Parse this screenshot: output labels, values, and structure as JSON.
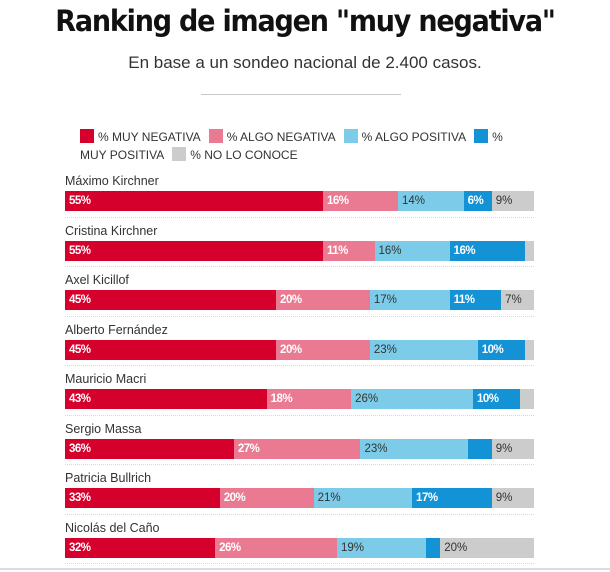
{
  "header": {
    "title": "Ranking de imagen \"muy negativa\"",
    "subtitle": "En base a un sondeo nacional de 2.400 casos."
  },
  "chart_data": {
    "type": "bar",
    "orientation": "horizontal-stacked-100",
    "title": "Ranking de imagen \"muy negativa\"",
    "subtitle": "En base a un sondeo nacional de 2.400 casos.",
    "legend_position": "top",
    "series": [
      {
        "key": "muy_negativa",
        "name": "% MUY NEGATIVA",
        "color": "#d6002c",
        "label_style": "dark",
        "values": [
          55,
          55,
          45,
          45,
          43,
          36,
          33,
          32
        ]
      },
      {
        "key": "algo_negativa",
        "name": "% ALGO NEGATIVA",
        "color": "#ea7a92",
        "label_style": "dark",
        "values": [
          16,
          11,
          20,
          20,
          18,
          27,
          20,
          26
        ]
      },
      {
        "key": "algo_positiva",
        "name": "% ALGO POSITIVA",
        "color": "#7ccbe8",
        "label_style": "light",
        "values": [
          14,
          16,
          17,
          23,
          26,
          23,
          21,
          19
        ]
      },
      {
        "key": "muy_positiva",
        "name": "% MUY POSITIVA",
        "color": "#1393d6",
        "label_style": "dark",
        "values": [
          6,
          16,
          11,
          10,
          10,
          5,
          17,
          3
        ]
      },
      {
        "key": "no_lo_conoce",
        "name": "% NO LO CONOCE",
        "color": "#cccccc",
        "label_style": "light",
        "values": [
          9,
          2,
          7,
          2,
          3,
          9,
          9,
          20
        ]
      }
    ],
    "categories": [
      "Máximo Kirchner",
      "Cristina Kirchner",
      "Axel Kicillof",
      "Alberto Fernández",
      "Mauricio Macri",
      "Sergio Massa",
      "Patricia Bullrich",
      "Nicolás del Caño"
    ],
    "labels_shown": [
      [
        "55%",
        "16%",
        "14%",
        "6%",
        "9%"
      ],
      [
        "55%",
        "11%",
        "16%",
        "16%",
        ""
      ],
      [
        "45%",
        "20%",
        "17%",
        "11%",
        "7%"
      ],
      [
        "45%",
        "20%",
        "23%",
        "10%",
        ""
      ],
      [
        "43%",
        "18%",
        "26%",
        "10%",
        ""
      ],
      [
        "36%",
        "27%",
        "23%",
        "",
        "9%"
      ],
      [
        "33%",
        "20%",
        "21%",
        "17%",
        "9%"
      ],
      [
        "32%",
        "26%",
        "19%",
        "",
        "20%"
      ]
    ],
    "xlim": [
      0,
      100
    ],
    "grid": false
  }
}
